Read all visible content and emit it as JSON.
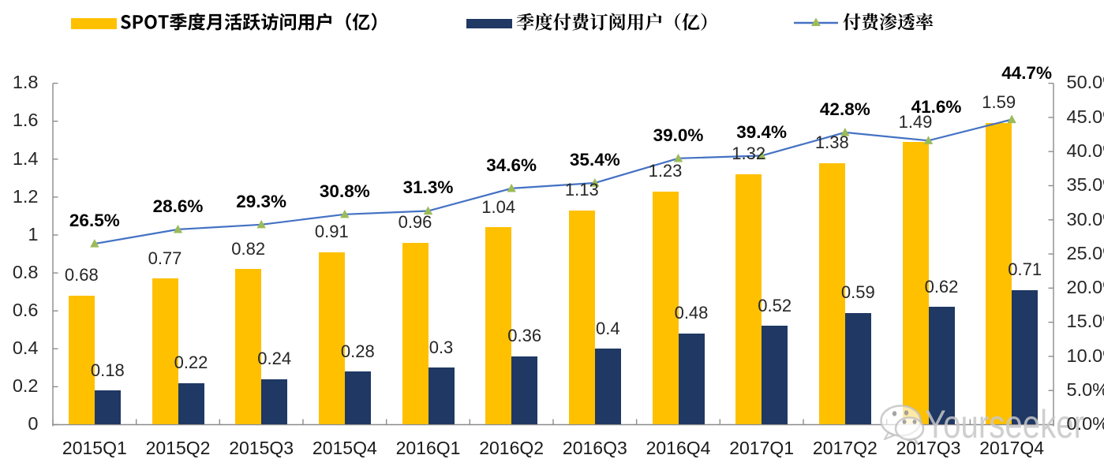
{
  "chart_data": {
    "type": "combo-bar-line",
    "categories": [
      "2015Q1",
      "2015Q2",
      "2015Q3",
      "2015Q4",
      "2016Q1",
      "2016Q2",
      "2016Q3",
      "2016Q4",
      "2017Q1",
      "2017Q2",
      "2017Q3",
      "2017Q4"
    ],
    "series": [
      {
        "name": "SPOT季度月活跃访问用户（亿）",
        "type": "bar",
        "axis": "left",
        "color": "#FFC000",
        "values": [
          0.68,
          0.77,
          0.82,
          0.91,
          0.96,
          1.04,
          1.13,
          1.23,
          1.32,
          1.38,
          1.49,
          1.59
        ],
        "labels": [
          "0.68",
          "0.77",
          "0.82",
          "0.91",
          "0.96",
          "1.04",
          "1.13",
          "1.23",
          "1.32",
          "1.38",
          "1.49",
          "1.59"
        ]
      },
      {
        "name": "季度付费订阅用户（亿）",
        "type": "bar",
        "axis": "left",
        "color": "#1F3864",
        "values": [
          0.18,
          0.22,
          0.24,
          0.28,
          0.3,
          0.36,
          0.4,
          0.48,
          0.52,
          0.59,
          0.62,
          0.71
        ],
        "labels": [
          "0.18",
          "0.22",
          "0.24",
          "0.28",
          "0.3",
          "0.36",
          "0.4",
          "0.48",
          "0.52",
          "0.59",
          "0.62",
          "0.71"
        ]
      },
      {
        "name": "付费渗透率",
        "type": "line",
        "axis": "right",
        "color": "#4472C4",
        "marker": "triangle",
        "marker_color": "#9BBB59",
        "values": [
          26.5,
          28.6,
          29.3,
          30.8,
          31.3,
          34.6,
          35.4,
          39.0,
          39.4,
          42.8,
          41.6,
          44.7
        ],
        "labels": [
          "26.5%",
          "28.6%",
          "29.3%",
          "30.8%",
          "31.3%",
          "34.6%",
          "35.4%",
          "39.0%",
          "39.4%",
          "42.8%",
          "41.6%",
          "44.7%"
        ]
      }
    ],
    "left_axis": {
      "min": 0,
      "max": 1.8,
      "step": 0.2,
      "tick_labels": [
        "1.8",
        "1.6",
        "1.4",
        "1.2",
        "1",
        "0.8",
        "0.6",
        "0.4",
        "0.2",
        "0"
      ]
    },
    "right_axis": {
      "min": 0,
      "max": 50,
      "step": 5,
      "tick_labels": [
        "50.0%",
        "45.0%",
        "40.0%",
        "35.0%",
        "30.0%",
        "25.0%",
        "20.0%",
        "15.0%",
        "10.0%",
        "5.0%",
        "0.0%"
      ]
    },
    "grid": false,
    "legend_position": "top",
    "pct_label_offsets": {
      "10": {
        "dx": 10,
        "dy": 34
      },
      "11": {
        "dx": 19,
        "dy": 50
      }
    }
  },
  "legend": {
    "items": [
      {
        "label": "SPOT季度月活跃访问用户（亿）",
        "swatch": "bar",
        "color": "#FFC000"
      },
      {
        "label": "季度付费订阅用户（亿）",
        "swatch": "bar",
        "color": "#1F3864"
      },
      {
        "label": "付费渗透率",
        "swatch": "line-triangle",
        "line_color": "#4472C4",
        "marker_color": "#9BBB59"
      }
    ]
  },
  "watermark": {
    "text": "Yourseeker",
    "icon": "wechat-logo"
  },
  "colors": {
    "background": "#FFFFFF",
    "bar_mau": "#FFC000",
    "bar_subs": "#1F3864",
    "line_penetration": "#4472C4",
    "line_marker": "#9BBB59",
    "axis": "#8C8C8C",
    "tick_label": "#262626",
    "value_label": "#262626",
    "pct_label": "#000000",
    "watermark": "#C8C8C8"
  }
}
